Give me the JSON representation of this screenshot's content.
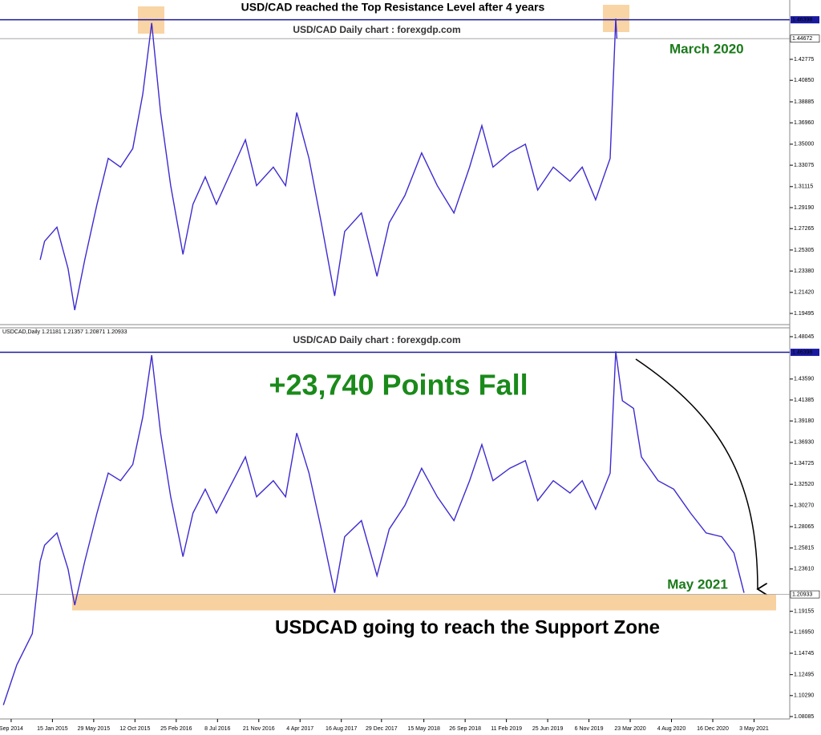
{
  "chart_data": [
    {
      "type": "line",
      "title": "USD/CAD reached the Top Resistance Level after 4 years",
      "subtitle": "USD/CAD Daily chart : forexgdp.com",
      "color": "#3d2bd0",
      "xlim": [
        2014.57,
        2021.65
      ],
      "ylim": [
        1.1847,
        1.4821
      ],
      "yticks": [
        1.42775,
        {
          "value": 1.4085,
          "label": "1.40850"
        },
        1.38885,
        {
          "value": 1.3696,
          "label": "1.36960"
        },
        {
          "value": 1.35,
          "label": "1.35000"
        },
        1.33075,
        1.31115,
        {
          "value": 1.2919,
          "label": "1.29190"
        },
        1.27265,
        1.25305,
        {
          "value": 1.2338,
          "label": "1.23380"
        },
        {
          "value": 1.2142,
          "label": "1.21420"
        },
        1.19495
      ],
      "hlines": [
        1.46398,
        1.44672
      ],
      "annotations": [
        "March 2020"
      ],
      "x": [
        2014.93,
        2014.97,
        2015.08,
        2015.18,
        2015.24,
        2015.33,
        2015.44,
        2015.54,
        2015.65,
        2015.76,
        2015.85,
        2015.93,
        2016.01,
        2016.1,
        2016.21,
        2016.3,
        2016.41,
        2016.51,
        2016.66,
        2016.77,
        2016.87,
        2017.02,
        2017.13,
        2017.23,
        2017.34,
        2017.45,
        2017.57,
        2017.66,
        2017.81,
        2017.95,
        2018.06,
        2018.2,
        2018.35,
        2018.49,
        2018.64,
        2018.78,
        2018.89,
        2018.99,
        2019.14,
        2019.28,
        2019.39,
        2019.53,
        2019.68,
        2019.79,
        2019.91,
        2020.04,
        2020.09,
        2020.1
      ],
      "values": [
        1.244,
        1.261,
        1.274,
        1.236,
        1.198,
        1.244,
        1.295,
        1.337,
        1.329,
        1.346,
        1.396,
        1.461,
        1.379,
        1.312,
        1.249,
        1.295,
        1.32,
        1.295,
        1.329,
        1.354,
        1.312,
        1.329,
        1.312,
        1.379,
        1.337,
        1.278,
        1.211,
        1.27,
        1.287,
        1.229,
        1.278,
        1.303,
        1.342,
        1.312,
        1.287,
        1.329,
        1.367,
        1.329,
        1.342,
        1.35,
        1.308,
        1.329,
        1.316,
        1.329,
        1.299,
        1.337,
        1.465,
        1.4467
      ]
    },
    {
      "type": "line",
      "subtitle": "USD/CAD Daily chart : forexgdp.com",
      "info": "USDCAD,Daily  1.21181 1.21357 1.20871 1.20933",
      "color": "#3d2bd0",
      "xlim": [
        2014.57,
        2021.65
      ],
      "ylim": [
        1.0783,
        1.4889
      ],
      "yticks": [
        1.48045,
        {
          "value": 1.4359,
          "label": "1.43590"
        },
        1.41385,
        {
          "value": 1.3918,
          "label": "1.39180"
        },
        {
          "value": 1.3693,
          "label": "1.36930"
        },
        1.34725,
        {
          "value": 1.3252,
          "label": "1.32520"
        },
        {
          "value": 1.3027,
          "label": "1.30270"
        },
        1.28065,
        1.25815,
        {
          "value": 1.2361,
          "label": "1.23610"
        },
        1.19155,
        {
          "value": 1.1695,
          "label": "1.16950"
        },
        1.14745,
        1.12495,
        {
          "value": 1.1029,
          "label": "1.10290"
        },
        1.08085
      ],
      "xticks": [
        {
          "value": 2014.67,
          "label": "Sep 2014"
        },
        {
          "value": 2015.04,
          "label": "15 Jan 2015"
        },
        {
          "value": 2015.41,
          "label": "29 May 2015"
        },
        {
          "value": 2015.78,
          "label": "12 Oct 2015"
        },
        {
          "value": 2016.15,
          "label": "25 Feb 2016"
        },
        {
          "value": 2016.52,
          "label": "8 Jul 2016"
        },
        {
          "value": 2016.89,
          "label": "21 Nov 2016"
        },
        {
          "value": 2017.26,
          "label": "4 Apr 2017"
        },
        {
          "value": 2017.63,
          "label": "16 Aug 2017"
        },
        {
          "value": 2017.99,
          "label": "29 Dec 2017"
        },
        {
          "value": 2018.37,
          "label": "15 May 2018"
        },
        {
          "value": 2018.74,
          "label": "26 Sep 2018"
        },
        {
          "value": 2019.11,
          "label": "11 Feb 2019"
        },
        {
          "value": 2019.48,
          "label": "25 Jun 2019"
        },
        {
          "value": 2019.85,
          "label": "6 Nov 2019"
        },
        {
          "value": 2020.22,
          "label": "23 Mar 2020"
        },
        {
          "value": 2020.59,
          "label": "4 Aug 2020"
        },
        {
          "value": 2020.96,
          "label": "16 Dec 2020"
        },
        {
          "value": 2021.33,
          "label": "3 May 2021"
        }
      ],
      "hlines": [
        1.46398,
        1.20933
      ],
      "zone": [
        1.1925,
        1.20933
      ],
      "annotations": [
        "+23,740 Points Fall",
        "May 2021",
        "USDCAD going to reach the Support Zone"
      ],
      "x": [
        2014.6,
        2014.72,
        2014.86,
        2014.93,
        2014.97,
        2015.08,
        2015.18,
        2015.24,
        2015.33,
        2015.44,
        2015.54,
        2015.65,
        2015.76,
        2015.85,
        2015.93,
        2016.01,
        2016.1,
        2016.21,
        2016.3,
        2016.41,
        2016.51,
        2016.66,
        2016.77,
        2016.87,
        2017.02,
        2017.13,
        2017.23,
        2017.34,
        2017.45,
        2017.57,
        2017.66,
        2017.81,
        2017.95,
        2018.06,
        2018.2,
        2018.35,
        2018.49,
        2018.64,
        2018.78,
        2018.89,
        2018.99,
        2019.14,
        2019.28,
        2019.39,
        2019.53,
        2019.68,
        2019.79,
        2019.91,
        2020.04,
        2020.09,
        2020.15,
        2020.25,
        2020.32,
        2020.47,
        2020.61,
        2020.76,
        2020.9,
        2021.04,
        2021.15,
        2021.24
      ],
      "values": [
        1.093,
        1.135,
        1.168,
        1.244,
        1.261,
        1.274,
        1.236,
        1.198,
        1.244,
        1.295,
        1.337,
        1.329,
        1.346,
        1.396,
        1.461,
        1.379,
        1.312,
        1.249,
        1.295,
        1.32,
        1.295,
        1.329,
        1.354,
        1.312,
        1.329,
        1.312,
        1.379,
        1.337,
        1.278,
        1.211,
        1.27,
        1.287,
        1.229,
        1.278,
        1.303,
        1.342,
        1.312,
        1.287,
        1.329,
        1.367,
        1.329,
        1.342,
        1.35,
        1.308,
        1.329,
        1.316,
        1.329,
        1.299,
        1.337,
        1.465,
        1.413,
        1.405,
        1.354,
        1.329,
        1.32,
        1.295,
        1.274,
        1.27,
        1.253,
        1.211
      ]
    }
  ]
}
